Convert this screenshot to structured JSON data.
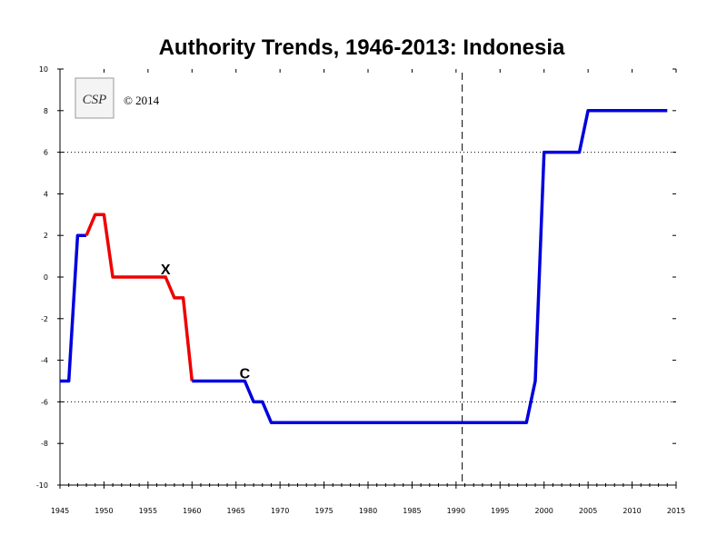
{
  "chart_data": {
    "type": "line",
    "title": "Authority Trends, 1946-2013: Indonesia",
    "xlabel": "",
    "ylabel": "",
    "xlim": [
      1945,
      2015
    ],
    "ylim": [
      -10,
      10
    ],
    "x_ticks": [
      1945,
      1950,
      1955,
      1960,
      1965,
      1970,
      1975,
      1980,
      1985,
      1990,
      1995,
      2000,
      2005,
      2010,
      2015
    ],
    "y_ticks": [
      10,
      8,
      6,
      4,
      2,
      0,
      -2,
      -4,
      -6,
      -8,
      -10
    ],
    "reference_lines": [
      6,
      -6
    ],
    "marker_line_x": 1990.7,
    "colors": {
      "blue": "#0000dd",
      "red": "#ee0000"
    },
    "segments": [
      {
        "color": "blue",
        "points": [
          [
            1945,
            -5
          ],
          [
            1946,
            -5
          ],
          [
            1947,
            2
          ],
          [
            1948,
            2
          ]
        ]
      },
      {
        "color": "red",
        "points": [
          [
            1948,
            2
          ],
          [
            1949,
            3
          ],
          [
            1950,
            3
          ],
          [
            1951,
            0
          ],
          [
            1956,
            0
          ],
          [
            1957,
            0
          ],
          [
            1958,
            -1
          ],
          [
            1959,
            -1
          ],
          [
            1960,
            -5
          ]
        ]
      },
      {
        "color": "blue",
        "points": [
          [
            1960,
            -5
          ],
          [
            1966,
            -5
          ],
          [
            1967,
            -6
          ],
          [
            1968,
            -6
          ],
          [
            1969,
            -7
          ],
          [
            1998,
            -7
          ],
          [
            1999,
            -5
          ],
          [
            2000,
            6
          ],
          [
            2004,
            6
          ],
          [
            2005,
            8
          ],
          [
            2014,
            8
          ]
        ]
      }
    ],
    "annotations": [
      {
        "text": "X",
        "x": 1957,
        "y": 0
      },
      {
        "text": "C",
        "x": 1966,
        "y": -5
      }
    ],
    "copyright": "© 2014",
    "logo": "CSP"
  }
}
